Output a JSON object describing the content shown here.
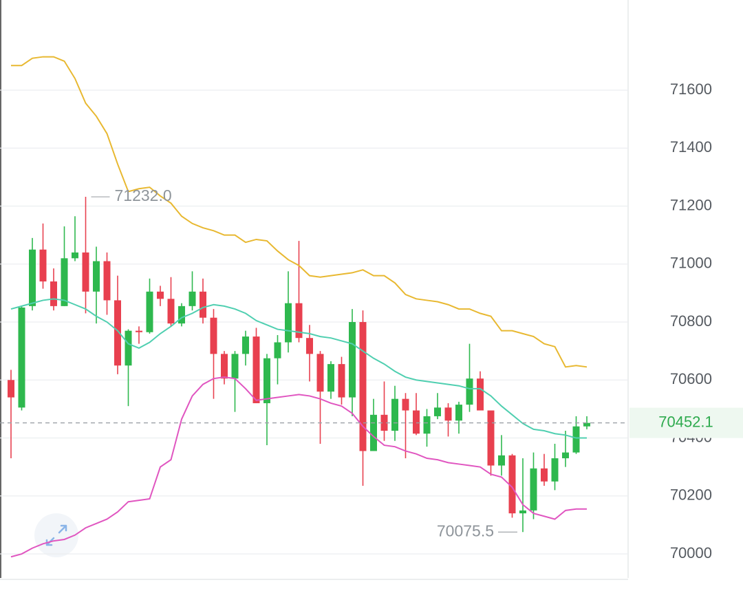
{
  "chart_data": {
    "type": "candlestick",
    "ylim": [
      69917,
      71911
    ],
    "yticks": [
      70000,
      70200,
      70400,
      70600,
      70800,
      71000,
      71200,
      71400,
      71600
    ],
    "grid": true,
    "up_color": "#2eb84e",
    "down_color": "#e8404f",
    "open": [
      70600,
      70505,
      70855,
      71050,
      70940,
      70855,
      71020,
      71040,
      70905,
      71010,
      70875,
      70650,
      70770,
      70765,
      70905,
      70880,
      70795,
      70855,
      70905,
      70815,
      70690,
      70605,
      70690,
      70750,
      70520,
      70675,
      70730,
      70865,
      70745,
      70690,
      70560,
      70655,
      70540,
      70800,
      70355,
      70480,
      70425,
      70535,
      70495,
      70415,
      70475,
      70505,
      70460,
      70515,
      70605,
      70495,
      70305,
      70340,
      70140,
      70150,
      70295,
      70250,
      70330,
      70350,
      70440
    ],
    "high": [
      70635,
      70855,
      71090,
      71140,
      70985,
      71130,
      71165,
      71232,
      71060,
      71040,
      70960,
      70775,
      70785,
      70950,
      70925,
      70955,
      70865,
      70975,
      70950,
      70845,
      70700,
      70700,
      70770,
      70780,
      70690,
      70755,
      70975,
      71080,
      70790,
      70700,
      70665,
      70680,
      70845,
      70840,
      70535,
      70595,
      70580,
      70555,
      70555,
      70500,
      70555,
      70520,
      70525,
      70725,
      70630,
      70495,
      70410,
      70345,
      70330,
      70350,
      70345,
      70380,
      70425,
      70475,
      70475
    ],
    "low": [
      70330,
      70495,
      70840,
      70915,
      70840,
      70855,
      71010,
      70830,
      70795,
      70825,
      70620,
      70510,
      70725,
      70760,
      70855,
      70785,
      70785,
      70840,
      70795,
      70535,
      70585,
      70490,
      70650,
      70520,
      70375,
      70585,
      70695,
      70730,
      70595,
      70380,
      70535,
      70515,
      70475,
      70235,
      70355,
      70390,
      70390,
      70330,
      70410,
      70370,
      70465,
      70405,
      70415,
      70490,
      70495,
      70270,
      70270,
      70125,
      70075.5,
      70120,
      70235,
      70220,
      70300,
      70345,
      70430
    ],
    "close": [
      70540,
      70850,
      71050,
      70940,
      70855,
      71020,
      71040,
      70905,
      71010,
      70875,
      70650,
      70770,
      70765,
      70905,
      70880,
      70795,
      70855,
      70905,
      70815,
      70690,
      70605,
      70690,
      70750,
      70520,
      70675,
      70730,
      70865,
      70745,
      70690,
      70560,
      70655,
      70540,
      70800,
      70355,
      70480,
      70425,
      70535,
      70495,
      70415,
      70475,
      70505,
      70460,
      70515,
      70605,
      70495,
      70305,
      70340,
      70140,
      70150,
      70295,
      70250,
      70330,
      70350,
      70440,
      70452.1
    ],
    "upper": {
      "color": "#e8b830",
      "values": [
        71685,
        71685,
        71710,
        71715,
        71715,
        71700,
        71640,
        71555,
        71510,
        71450,
        71345,
        71250,
        71260,
        71265,
        71235,
        71210,
        71165,
        71140,
        71125,
        71115,
        71100,
        71100,
        71075,
        71085,
        71080,
        71045,
        71015,
        70995,
        70960,
        70955,
        70960,
        70965,
        70970,
        70980,
        70960,
        70960,
        70935,
        70895,
        70880,
        70875,
        70870,
        70860,
        70845,
        70845,
        70830,
        70820,
        70770,
        70770,
        70760,
        70750,
        70725,
        70715,
        70645,
        70650,
        70645
      ]
    },
    "middle": {
      "color": "#4fcfb0",
      "values": [
        70845,
        70855,
        70865,
        70875,
        70880,
        70875,
        70860,
        70845,
        70820,
        70800,
        70770,
        70725,
        70710,
        70730,
        70760,
        70785,
        70815,
        70830,
        70850,
        70860,
        70855,
        70845,
        70830,
        70805,
        70790,
        70775,
        70770,
        70765,
        70760,
        70750,
        70745,
        70735,
        70725,
        70700,
        70675,
        70655,
        70630,
        70610,
        70600,
        70595,
        70590,
        70585,
        70580,
        70570,
        70570,
        70545,
        70510,
        70480,
        70450,
        70430,
        70425,
        70415,
        70410,
        70400,
        70400
      ]
    },
    "lower": {
      "color": "#e055c0",
      "values": [
        69990,
        70000,
        70020,
        70035,
        70045,
        70050,
        70065,
        70090,
        70105,
        70120,
        70145,
        70180,
        70185,
        70190,
        70300,
        70325,
        70465,
        70545,
        70585,
        70605,
        70610,
        70605,
        70570,
        70530,
        70535,
        70540,
        70545,
        70550,
        70545,
        70535,
        70520,
        70510,
        70485,
        70440,
        70405,
        70375,
        70370,
        70355,
        70345,
        70330,
        70325,
        70315,
        70310,
        70305,
        70300,
        70275,
        70265,
        70230,
        70170,
        70140,
        70130,
        70120,
        70150,
        70155,
        70155
      ]
    },
    "current_price": 70452.1,
    "high_marker": {
      "value": 71232,
      "label": "71232.0"
    },
    "low_marker": 70075.5
  }
}
